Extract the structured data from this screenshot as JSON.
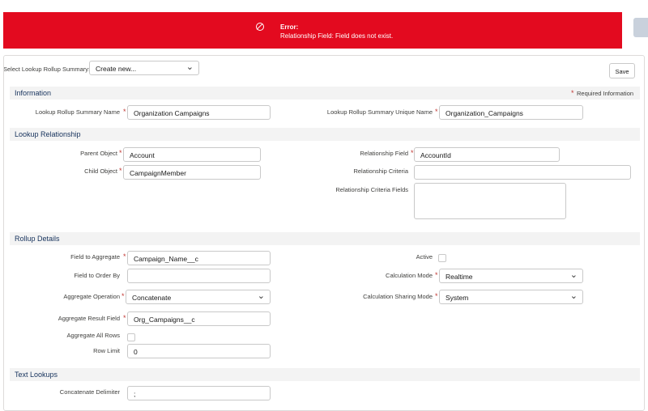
{
  "error": {
    "icon": "ban-icon",
    "title": "Error:",
    "message": "Relationship Field: Field does not exist.",
    "color": "#e30a1f"
  },
  "selector": {
    "label": "Select Lookup Rollup Summary:",
    "value": "Create new..."
  },
  "save_label": "Save",
  "required_info": "Required Information",
  "sections": {
    "information": "Information",
    "lookup_relationship": "Lookup Relationship",
    "rollup_details": "Rollup Details",
    "text_lookups": "Text Lookups"
  },
  "fields": {
    "name": {
      "label": "Lookup Rollup Summary Name",
      "value": "Organization Campaigns"
    },
    "unique_name": {
      "label": "Lookup Rollup Summary Unique Name",
      "value": "Organization_Campaigns"
    },
    "parent_object": {
      "label": "Parent Object",
      "value": "Account"
    },
    "child_object": {
      "label": "Child Object",
      "value": "CampaignMember"
    },
    "relationship_field": {
      "label": "Relationship Field",
      "value": "AccountId"
    },
    "relationship_criteria": {
      "label": "Relationship Criteria",
      "value": ""
    },
    "relationship_criteria_fields": {
      "label": "Relationship Criteria Fields",
      "value": ""
    },
    "field_to_aggregate": {
      "label": "Field to Aggregate",
      "value": "Campaign_Name__c"
    },
    "field_to_order_by": {
      "label": "Field to Order By",
      "value": ""
    },
    "aggregate_operation": {
      "label": "Aggregate Operation",
      "value": "Concatenate"
    },
    "aggregate_result_field": {
      "label": "Aggregate Result Field",
      "value": "Org_Campaigns__c"
    },
    "aggregate_all_rows": {
      "label": "Aggregate All Rows",
      "checked": false
    },
    "row_limit": {
      "label": "Row Limit",
      "value": "0"
    },
    "active": {
      "label": "Active",
      "checked": false
    },
    "calculation_mode": {
      "label": "Calculation Mode",
      "value": "Realtime"
    },
    "calculation_sharing_mode": {
      "label": "Calculation Sharing Mode",
      "value": "System"
    },
    "concatenate_delimiter": {
      "label": "Concatenate Delimiter",
      "value": ";"
    }
  }
}
